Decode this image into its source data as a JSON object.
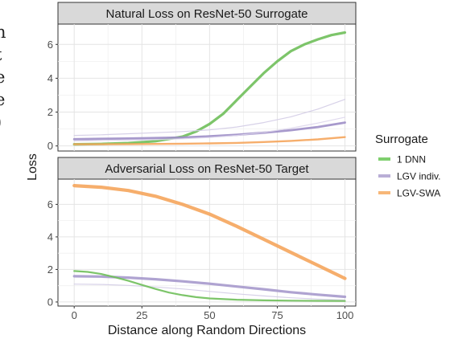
{
  "margin_text": [
    "n",
    "t",
    "e",
    "e",
    ")"
  ],
  "legend": {
    "title": "Surrogate",
    "items": [
      {
        "label": "1 DNN",
        "color": "#7fcf6e"
      },
      {
        "label": "LGV indiv.",
        "color": "#b9aed6"
      },
      {
        "label": "LGV-SWA",
        "color": "#f7b778"
      }
    ]
  },
  "chart_data": [
    {
      "type": "line",
      "title": "Natural Loss on ResNet-50 Surrogate",
      "xlabel": "Distance along Random Directions",
      "ylabel": "Loss",
      "xlim": [
        -6,
        104
      ],
      "ylim": [
        -0.3,
        7.2
      ],
      "yticks": [
        0,
        2,
        4,
        6
      ],
      "xticks": [
        0,
        25,
        50,
        75,
        100
      ],
      "grid": true,
      "series": [
        {
          "name": "1 DNN",
          "color": "#6fbf5a",
          "width": 3.2,
          "x": [
            0,
            10,
            20,
            30,
            40,
            45,
            50,
            55,
            60,
            65,
            70,
            75,
            80,
            85,
            90,
            95,
            100
          ],
          "y": [
            0.1,
            0.12,
            0.17,
            0.28,
            0.55,
            0.85,
            1.3,
            1.9,
            2.7,
            3.5,
            4.3,
            5.0,
            5.6,
            6.0,
            6.3,
            6.55,
            6.7
          ]
        },
        {
          "name": "LGV indiv.",
          "color": "#9d8ec7",
          "width": 2.8,
          "x": [
            0,
            10,
            20,
            30,
            40,
            50,
            60,
            70,
            80,
            90,
            100
          ],
          "y": [
            0.4,
            0.42,
            0.44,
            0.47,
            0.5,
            0.57,
            0.66,
            0.78,
            0.93,
            1.12,
            1.38
          ]
        },
        {
          "name": "LGV indiv.",
          "color": "#d3cce6",
          "width": 1.2,
          "x": [
            0,
            10,
            20,
            30,
            40,
            50,
            60,
            70,
            80,
            90,
            100
          ],
          "y": [
            0.62,
            0.66,
            0.72,
            0.78,
            0.85,
            0.95,
            1.12,
            1.38,
            1.72,
            2.18,
            2.75
          ]
        },
        {
          "name": "LGV indiv.",
          "color": "#ddd6ec",
          "width": 1.2,
          "x": [
            0,
            10,
            20,
            30,
            40,
            50,
            60,
            70,
            80,
            90,
            100
          ],
          "y": [
            0.3,
            0.32,
            0.34,
            0.37,
            0.42,
            0.5,
            0.62,
            0.8,
            1.05,
            1.35,
            1.7
          ]
        },
        {
          "name": "LGV-SWA",
          "color": "#f5a55c",
          "width": 2.4,
          "x": [
            0,
            10,
            20,
            30,
            40,
            50,
            60,
            70,
            80,
            90,
            100
          ],
          "y": [
            0.1,
            0.1,
            0.11,
            0.12,
            0.13,
            0.15,
            0.18,
            0.23,
            0.3,
            0.39,
            0.52
          ]
        }
      ]
    },
    {
      "type": "line",
      "title": "Adversarial Loss on ResNet-50 Target",
      "xlabel": "Distance along Random Directions",
      "ylabel": "Loss",
      "xlim": [
        -6,
        104
      ],
      "ylim": [
        -0.25,
        7.55
      ],
      "yticks": [
        0,
        2,
        4,
        6
      ],
      "xticks": [
        0,
        25,
        50,
        75,
        100
      ],
      "grid": true,
      "series": [
        {
          "name": "LGV-SWA",
          "color": "#f5a55c",
          "width": 4.2,
          "x": [
            0,
            10,
            20,
            30,
            40,
            50,
            60,
            70,
            80,
            90,
            100
          ],
          "y": [
            7.15,
            7.05,
            6.85,
            6.5,
            6.0,
            5.4,
            4.65,
            3.85,
            3.05,
            2.25,
            1.45
          ]
        },
        {
          "name": "LGV indiv.",
          "color": "#a699cc",
          "width": 3.2,
          "x": [
            0,
            10,
            20,
            30,
            40,
            50,
            60,
            70,
            80,
            90,
            100
          ],
          "y": [
            1.58,
            1.56,
            1.5,
            1.4,
            1.27,
            1.12,
            0.95,
            0.78,
            0.6,
            0.45,
            0.32
          ]
        },
        {
          "name": "LGV indiv.",
          "color": "#d3cce6",
          "width": 1.2,
          "x": [
            0,
            10,
            20,
            30,
            40,
            50,
            60,
            70,
            80,
            90,
            100
          ],
          "y": [
            1.1,
            1.08,
            1.02,
            0.92,
            0.8,
            0.65,
            0.5,
            0.37,
            0.26,
            0.18,
            0.12
          ]
        },
        {
          "name": "1 DNN",
          "color": "#6fbf5a",
          "width": 2.2,
          "x": [
            0,
            5,
            10,
            15,
            20,
            25,
            30,
            35,
            40,
            45,
            50,
            60,
            70,
            80,
            90,
            100
          ],
          "y": [
            1.9,
            1.85,
            1.72,
            1.52,
            1.3,
            1.05,
            0.8,
            0.58,
            0.42,
            0.3,
            0.22,
            0.14,
            0.1,
            0.08,
            0.07,
            0.06
          ]
        }
      ]
    }
  ]
}
